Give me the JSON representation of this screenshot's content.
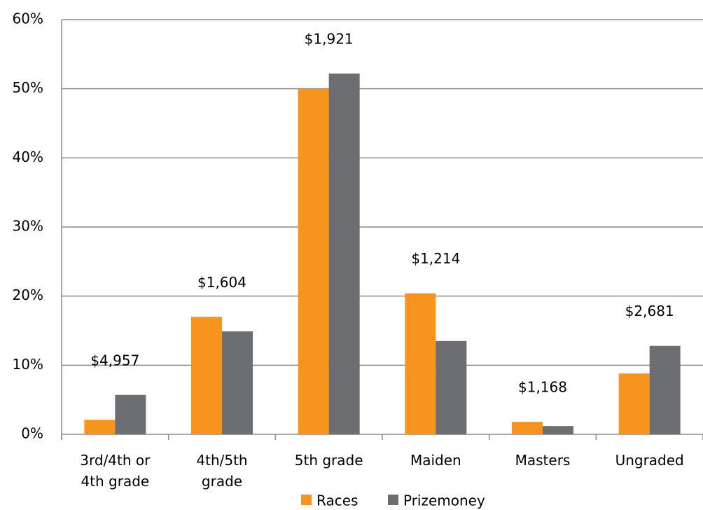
{
  "chart_data": {
    "type": "bar",
    "categories": [
      "3rd/4th or 4th grade",
      "4th/5th grade",
      "5th grade",
      "Maiden",
      "Masters",
      "Ungraded"
    ],
    "series": [
      {
        "name": "Races",
        "color": "#f7941d",
        "values": [
          2.1,
          17,
          50,
          20.4,
          1.8,
          8.8
        ]
      },
      {
        "name": "Prizemoney",
        "color": "#6d6e71",
        "values": [
          5.7,
          14.9,
          52.2,
          13.5,
          1.2,
          12.8
        ]
      }
    ],
    "annotations": [
      "$4,957",
      "$1,604",
      "$1,921",
      "$1,214",
      "$1,168",
      "$2,681"
    ],
    "ylim": [
      0,
      60
    ],
    "yticks": [
      {
        "value": 0,
        "label": "0%"
      },
      {
        "value": 10,
        "label": "10%"
      },
      {
        "value": 20,
        "label": "20%"
      },
      {
        "value": 30,
        "label": "30%"
      },
      {
        "value": 40,
        "label": "40%"
      },
      {
        "value": 50,
        "label": "50%"
      },
      {
        "value": 60,
        "label": "60%"
      }
    ],
    "grid": true,
    "legend": "bottom"
  }
}
